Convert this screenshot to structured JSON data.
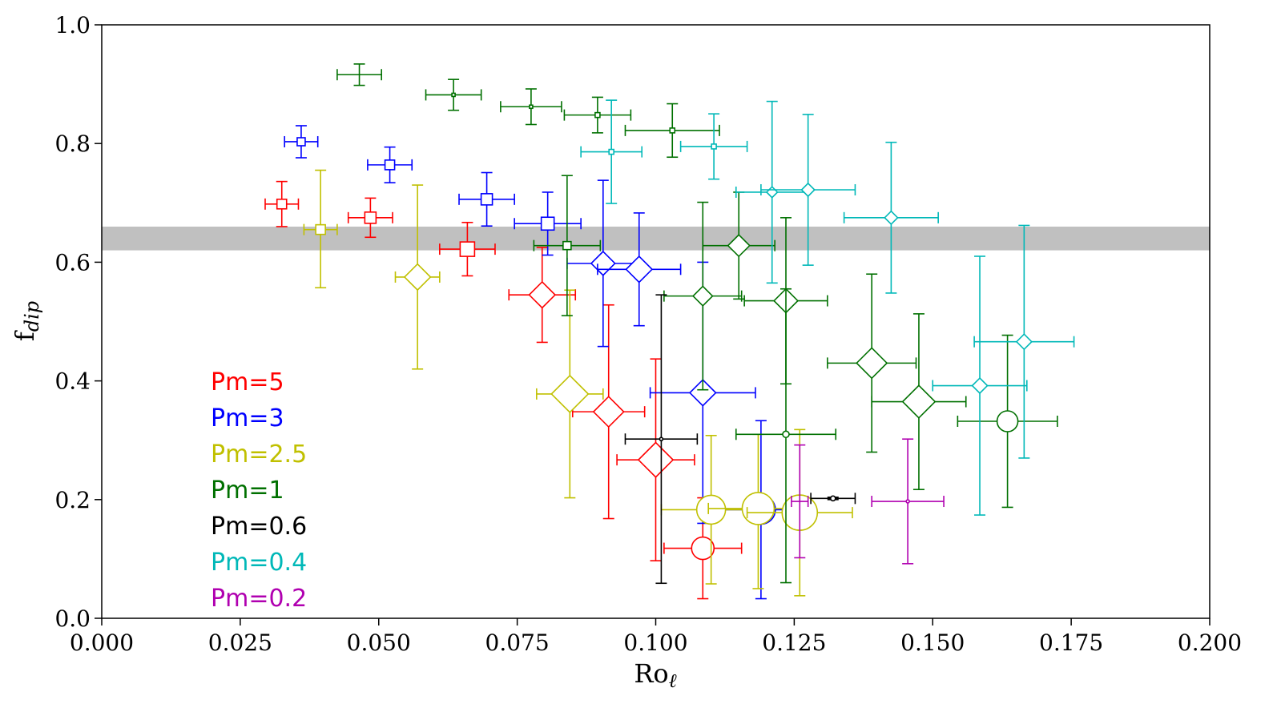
{
  "chart_data": {
    "type": "scatter",
    "title": "",
    "xlabel_main": "Ro",
    "xlabel_sub": "ℓ",
    "ylabel_main": "f",
    "ylabel_sub": "dip",
    "xlim": [
      0.0,
      0.2
    ],
    "ylim": [
      0.0,
      1.0
    ],
    "xticks": [
      0.0,
      0.025,
      0.05,
      0.075,
      0.1,
      0.125,
      0.15,
      0.175,
      0.2
    ],
    "xtick_labels": [
      "0.000",
      "0.025",
      "0.050",
      "0.075",
      "0.100",
      "0.125",
      "0.150",
      "0.175",
      "0.200"
    ],
    "yticks": [
      0.0,
      0.2,
      0.4,
      0.6,
      0.8,
      1.0
    ],
    "ytick_labels": [
      "0.0",
      "0.2",
      "0.4",
      "0.6",
      "0.8",
      "1.0"
    ],
    "grid": false,
    "legend_position": "lower-left",
    "reference_band": {
      "y_low": 0.62,
      "y_high": 0.66,
      "color": "#c0c0c0"
    },
    "series": [
      {
        "name": "Pm=5",
        "color": "#ff0000",
        "points": [
          {
            "x": 0.0325,
            "y": 0.698,
            "xerr_low": 0.003,
            "xerr_high": 0.003,
            "yerr_low": 0.038,
            "yerr_high": 0.038,
            "marker": "square",
            "size": 6
          },
          {
            "x": 0.0485,
            "y": 0.675,
            "xerr_low": 0.004,
            "xerr_high": 0.004,
            "yerr_low": 0.033,
            "yerr_high": 0.033,
            "marker": "square",
            "size": 7
          },
          {
            "x": 0.066,
            "y": 0.622,
            "xerr_low": 0.005,
            "xerr_high": 0.005,
            "yerr_low": 0.045,
            "yerr_high": 0.045,
            "marker": "square",
            "size": 9
          },
          {
            "x": 0.0795,
            "y": 0.545,
            "xerr_low": 0.006,
            "xerr_high": 0.006,
            "yerr_low": 0.08,
            "yerr_high": 0.08,
            "marker": "diamond",
            "size": 12
          },
          {
            "x": 0.0915,
            "y": 0.348,
            "xerr_low": 0.0065,
            "xerr_high": 0.0065,
            "yerr_low": 0.18,
            "yerr_high": 0.18,
            "marker": "diamond",
            "size": 14
          },
          {
            "x": 0.1,
            "y": 0.267,
            "xerr_low": 0.007,
            "xerr_high": 0.007,
            "yerr_low": 0.17,
            "yerr_high": 0.17,
            "marker": "diamond",
            "size": 16
          },
          {
            "x": 0.1085,
            "y": 0.118,
            "xerr_low": 0.007,
            "xerr_high": 0.007,
            "yerr_low": 0.085,
            "yerr_high": 0.085,
            "marker": "circle",
            "size": 14
          }
        ]
      },
      {
        "name": "Pm=3",
        "color": "#0000ff",
        "points": [
          {
            "x": 0.036,
            "y": 0.803,
            "xerr_low": 0.003,
            "xerr_high": 0.003,
            "yerr_low": 0.027,
            "yerr_high": 0.027,
            "marker": "square",
            "size": 5
          },
          {
            "x": 0.052,
            "y": 0.764,
            "xerr_low": 0.004,
            "xerr_high": 0.004,
            "yerr_low": 0.03,
            "yerr_high": 0.03,
            "marker": "square",
            "size": 6
          },
          {
            "x": 0.0695,
            "y": 0.706,
            "xerr_low": 0.005,
            "xerr_high": 0.005,
            "yerr_low": 0.045,
            "yerr_high": 0.045,
            "marker": "square",
            "size": 7
          },
          {
            "x": 0.0805,
            "y": 0.665,
            "xerr_low": 0.006,
            "xerr_high": 0.006,
            "yerr_low": 0.053,
            "yerr_high": 0.053,
            "marker": "square",
            "size": 8
          },
          {
            "x": 0.0905,
            "y": 0.598,
            "xerr_low": 0.0065,
            "xerr_high": 0.0065,
            "yerr_low": 0.14,
            "yerr_high": 0.14,
            "marker": "diamond",
            "size": 11
          },
          {
            "x": 0.097,
            "y": 0.588,
            "xerr_low": 0.0075,
            "xerr_high": 0.0075,
            "yerr_low": 0.095,
            "yerr_high": 0.095,
            "marker": "diamond",
            "size": 12
          },
          {
            "x": 0.1085,
            "y": 0.38,
            "xerr_low": 0.0095,
            "xerr_high": 0.0095,
            "yerr_low": 0.22,
            "yerr_high": 0.22,
            "marker": "diamond",
            "size": 12
          },
          {
            "x": 0.119,
            "y": 0.183,
            "xerr_low": 0.0075,
            "xerr_high": 0.0075,
            "yerr_low": 0.15,
            "yerr_high": 0.15,
            "marker": "circle",
            "size": 18
          }
        ]
      },
      {
        "name": "Pm=2.5",
        "color": "#c0c000",
        "points": [
          {
            "x": 0.0395,
            "y": 0.655,
            "xerr_low": 0.003,
            "xerr_high": 0.003,
            "yerr_low": 0.098,
            "yerr_high": 0.1,
            "marker": "square",
            "size": 6
          },
          {
            "x": 0.057,
            "y": 0.575,
            "xerr_low": 0.004,
            "xerr_high": 0.004,
            "yerr_low": 0.155,
            "yerr_high": 0.155,
            "marker": "diamond",
            "size": 12
          },
          {
            "x": 0.0845,
            "y": 0.378,
            "xerr_low": 0.006,
            "xerr_high": 0.006,
            "yerr_low": 0.175,
            "yerr_high": 0.175,
            "marker": "diamond",
            "size": 17
          },
          {
            "x": 0.11,
            "y": 0.183,
            "xerr_low": 0.009,
            "xerr_high": 0.009,
            "yerr_low": 0.125,
            "yerr_high": 0.125,
            "marker": "circle",
            "size": 18
          },
          {
            "x": 0.1185,
            "y": 0.185,
            "xerr_low": 0.009,
            "xerr_high": 0.009,
            "yerr_low": 0.135,
            "yerr_high": 0.125,
            "marker": "circle",
            "size": 20
          },
          {
            "x": 0.126,
            "y": 0.178,
            "xerr_low": 0.0095,
            "xerr_high": 0.0095,
            "yerr_low": 0.14,
            "yerr_high": 0.14,
            "marker": "circle",
            "size": 22
          }
        ]
      },
      {
        "name": "Pm=1",
        "color": "#007000",
        "points": [
          {
            "x": 0.0465,
            "y": 0.916,
            "xerr_low": 0.004,
            "xerr_high": 0.004,
            "yerr_low": 0.018,
            "yerr_high": 0.018,
            "marker": "cross",
            "size": 0
          },
          {
            "x": 0.0635,
            "y": 0.882,
            "xerr_low": 0.005,
            "xerr_high": 0.005,
            "yerr_low": 0.026,
            "yerr_high": 0.026,
            "marker": "square",
            "size": 2
          },
          {
            "x": 0.0775,
            "y": 0.862,
            "xerr_low": 0.0055,
            "xerr_high": 0.0055,
            "yerr_low": 0.03,
            "yerr_high": 0.03,
            "marker": "square",
            "size": 2
          },
          {
            "x": 0.0895,
            "y": 0.848,
            "xerr_low": 0.006,
            "xerr_high": 0.006,
            "yerr_low": 0.03,
            "yerr_high": 0.03,
            "marker": "square",
            "size": 3
          },
          {
            "x": 0.103,
            "y": 0.822,
            "xerr_low": 0.0085,
            "xerr_high": 0.0085,
            "yerr_low": 0.045,
            "yerr_high": 0.045,
            "marker": "square",
            "size": 3
          },
          {
            "x": 0.084,
            "y": 0.628,
            "xerr_low": 0.006,
            "xerr_high": 0.006,
            "yerr_low": 0.118,
            "yerr_high": 0.118,
            "marker": "square",
            "size": 5
          },
          {
            "x": 0.115,
            "y": 0.628,
            "xerr_low": 0.0065,
            "xerr_high": 0.0065,
            "yerr_low": 0.09,
            "yerr_high": 0.09,
            "marker": "diamond",
            "size": 10
          },
          {
            "x": 0.1085,
            "y": 0.543,
            "xerr_low": 0.007,
            "xerr_high": 0.007,
            "yerr_low": 0.158,
            "yerr_high": 0.158,
            "marker": "diamond",
            "size": 9
          },
          {
            "x": 0.1235,
            "y": 0.535,
            "xerr_low": 0.0075,
            "xerr_high": 0.0075,
            "yerr_low": 0.14,
            "yerr_high": 0.14,
            "marker": "diamond",
            "size": 11
          },
          {
            "x": 0.139,
            "y": 0.43,
            "xerr_low": 0.008,
            "xerr_high": 0.008,
            "yerr_low": 0.15,
            "yerr_high": 0.15,
            "marker": "diamond",
            "size": 14
          },
          {
            "x": 0.1475,
            "y": 0.365,
            "xerr_low": 0.0085,
            "xerr_high": 0.0085,
            "yerr_low": 0.148,
            "yerr_high": 0.148,
            "marker": "diamond",
            "size": 15
          },
          {
            "x": 0.1235,
            "y": 0.31,
            "xerr_low": 0.009,
            "xerr_high": 0.009,
            "yerr_low": 0.25,
            "yerr_high": 0.245,
            "marker": "circle",
            "size": 4
          },
          {
            "x": 0.1635,
            "y": 0.332,
            "xerr_low": 0.009,
            "xerr_high": 0.009,
            "yerr_low": 0.145,
            "yerr_high": 0.145,
            "marker": "circle",
            "size": 13
          }
        ]
      },
      {
        "name": "Pm=0.6",
        "color": "#000000",
        "points": [
          {
            "x": 0.101,
            "y": 0.302,
            "xerr_low": 0.0065,
            "xerr_high": 0.0065,
            "yerr_low": 0.243,
            "yerr_high": 0.243,
            "marker": "circle",
            "size": 2
          },
          {
            "x": 0.132,
            "y": 0.202,
            "xerr_low": 0.004,
            "xerr_high": 0.004,
            "yerr_low": 0.002,
            "yerr_high": 0.002,
            "marker": "circle",
            "size": 3
          }
        ]
      },
      {
        "name": "Pm=0.4",
        "color": "#00b8b8",
        "points": [
          {
            "x": 0.092,
            "y": 0.786,
            "xerr_low": 0.0055,
            "xerr_high": 0.0055,
            "yerr_low": 0.087,
            "yerr_high": 0.087,
            "marker": "square",
            "size": 3
          },
          {
            "x": 0.1105,
            "y": 0.795,
            "xerr_low": 0.006,
            "xerr_high": 0.006,
            "yerr_low": 0.055,
            "yerr_high": 0.055,
            "marker": "square",
            "size": 3
          },
          {
            "x": 0.121,
            "y": 0.718,
            "xerr_low": 0.0065,
            "xerr_high": 0.0065,
            "yerr_low": 0.153,
            "yerr_high": 0.153,
            "marker": "diamond",
            "size": 5
          },
          {
            "x": 0.1275,
            "y": 0.722,
            "xerr_low": 0.0085,
            "xerr_high": 0.0085,
            "yerr_low": 0.127,
            "yerr_high": 0.127,
            "marker": "diamond",
            "size": 6
          },
          {
            "x": 0.1425,
            "y": 0.675,
            "xerr_low": 0.0085,
            "xerr_high": 0.0085,
            "yerr_low": 0.127,
            "yerr_high": 0.127,
            "marker": "diamond",
            "size": 6
          },
          {
            "x": 0.1585,
            "y": 0.392,
            "xerr_low": 0.0085,
            "xerr_high": 0.0085,
            "yerr_low": 0.218,
            "yerr_high": 0.218,
            "marker": "diamond",
            "size": 7
          },
          {
            "x": 0.1665,
            "y": 0.466,
            "xerr_low": 0.009,
            "xerr_high": 0.009,
            "yerr_low": 0.196,
            "yerr_high": 0.196,
            "marker": "diamond",
            "size": 7
          }
        ]
      },
      {
        "name": "Pm=0.2",
        "color": "#b000b0",
        "points": [
          {
            "x": 0.1455,
            "y": 0.197,
            "xerr_low": 0.0065,
            "xerr_high": 0.0065,
            "yerr_low": 0.105,
            "yerr_high": 0.105,
            "marker": "circle",
            "size": 2
          },
          {
            "x": 0.126,
            "y": 0.197,
            "xerr_low": 0.0015,
            "xerr_high": 0.0015,
            "yerr_low": 0.095,
            "yerr_high": 0.095,
            "marker": "circle",
            "size": 0
          }
        ]
      }
    ]
  }
}
